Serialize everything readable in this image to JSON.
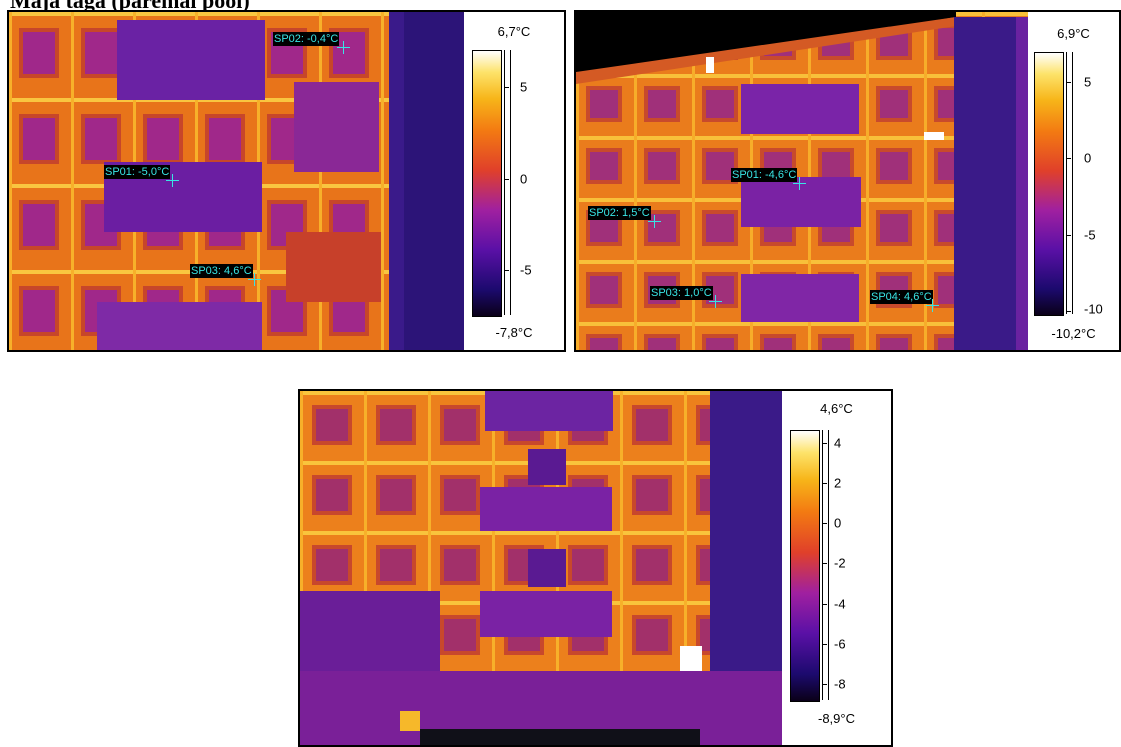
{
  "heading": "Maja taga (paremal pool)",
  "images": [
    {
      "legend": {
        "max": "6,7°C",
        "min": "-7,8°C",
        "ticks": [
          "5",
          "0",
          "-5"
        ]
      },
      "spots": [
        {
          "label": "SP01: -5,0°C"
        },
        {
          "label": "SP02: -0,4°C"
        },
        {
          "label": "SP03: 4,6°C"
        }
      ]
    },
    {
      "legend": {
        "max": "6,9°C",
        "min": "-10,2°C",
        "ticks": [
          "5",
          "0",
          "-5",
          "-10"
        ]
      },
      "spots": [
        {
          "label": "SP01: -4,6°C"
        },
        {
          "label": "SP02: 1,5°C"
        },
        {
          "label": "SP03: 1,0°C"
        },
        {
          "label": "SP04: 4,6°C"
        }
      ]
    },
    {
      "legend": {
        "max": "4,6°C",
        "min": "-8,9°C",
        "ticks": [
          "4",
          "2",
          "0",
          "-2",
          "-4",
          "-6",
          "-8"
        ]
      },
      "spots": []
    }
  ],
  "colors": {
    "spot_label": "#39e5e5",
    "wall_warm": "#f08a1c",
    "wall_hot": "#f8c23a",
    "facade_cold": "#7a1aa8",
    "sky": "#000000"
  }
}
